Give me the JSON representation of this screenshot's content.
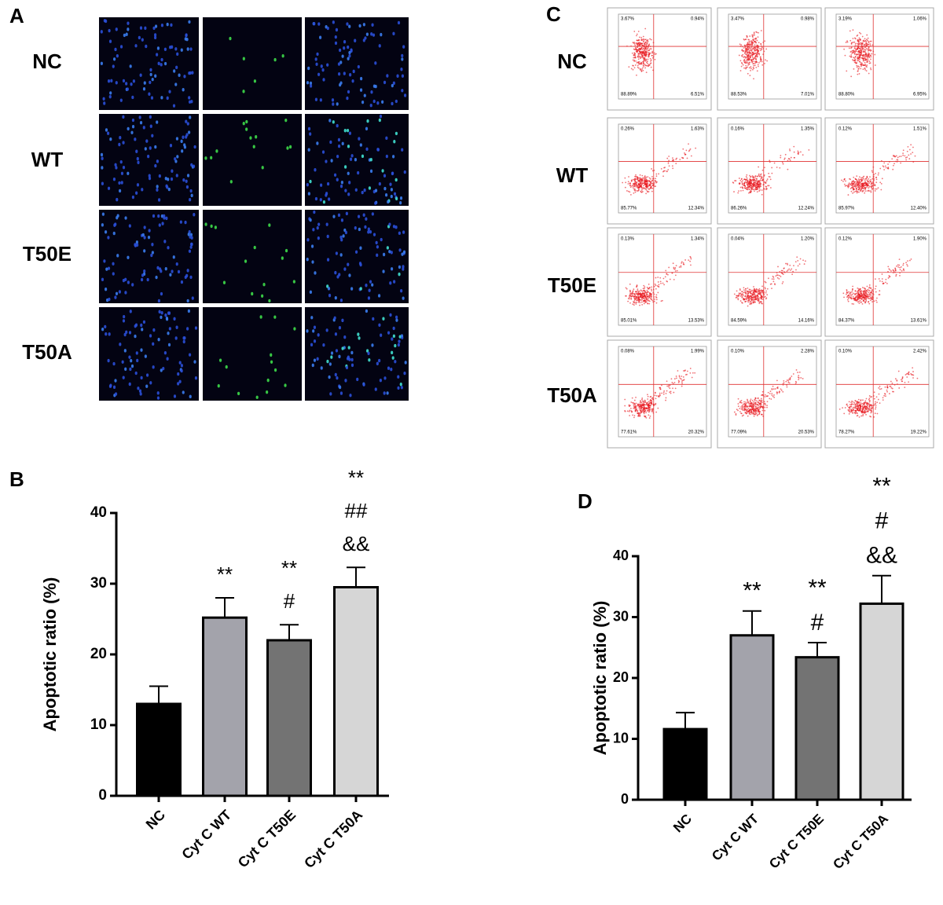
{
  "figure": {
    "panels": [
      {
        "label": "A",
        "rows": [
          "NC",
          "WT",
          "T50E",
          "T50A"
        ]
      },
      {
        "label": "C",
        "rows": [
          "NC",
          "WT",
          "T50E",
          "T50A"
        ],
        "quadrants": [
          [
            [
              "3.67%",
              "0.94%",
              "88.89%",
              "6.51%"
            ],
            [
              "3.47%",
              "0.98%",
              "88.53%",
              "7.01%"
            ],
            [
              "3.19%",
              "1.06%",
              "88.80%",
              "6.95%"
            ]
          ],
          [
            [
              "0.26%",
              "1.63%",
              "85.77%",
              "12.34%"
            ],
            [
              "0.16%",
              "1.35%",
              "86.26%",
              "12.24%"
            ],
            [
              "0.12%",
              "1.51%",
              "85.97%",
              "12.40%"
            ]
          ],
          [
            [
              "0.13%",
              "1.34%",
              "85.01%",
              "13.53%"
            ],
            [
              "0.04%",
              "1.20%",
              "84.59%",
              "14.16%"
            ],
            [
              "0.12%",
              "1.90%",
              "84.37%",
              "13.61%"
            ]
          ],
          [
            [
              "0.08%",
              "1.99%",
              "77.61%",
              "20.32%"
            ],
            [
              "0.10%",
              "2.28%",
              "77.09%",
              "20.53%"
            ],
            [
              "0.10%",
              "2.42%",
              "78.27%",
              "19.22%"
            ]
          ]
        ]
      }
    ]
  },
  "chart_data": [
    {
      "type": "bar",
      "label": "B",
      "y_label": "Apoptotic ratio (%)",
      "categories": [
        "NC",
        "Cyt C WT",
        "Cyt C T50E",
        "Cyt C T50A"
      ],
      "values": [
        13,
        25.2,
        22,
        29.5
      ],
      "errors": [
        2.5,
        2.8,
        2.2,
        2.8
      ],
      "colors": [
        "#000000",
        "#a3a3ab",
        "#737373",
        "#d6d6d6"
      ],
      "annotations": [
        [],
        [
          "**"
        ],
        [
          "**",
          "#"
        ],
        [
          "**",
          "##",
          "&&"
        ]
      ],
      "ylim": [
        0,
        40
      ],
      "yticks": [
        0,
        10,
        20,
        30,
        40
      ]
    },
    {
      "type": "bar",
      "label": "D",
      "y_label": "Apoptotic ratio (%)",
      "categories": [
        "NC",
        "Cyt C WT",
        "Cyt C T50E",
        "Cyt C T50A"
      ],
      "values": [
        11.6,
        27,
        23.4,
        32.2
      ],
      "errors": [
        2.7,
        4,
        2.4,
        4.6
      ],
      "colors": [
        "#000000",
        "#a3a3ab",
        "#737373",
        "#d6d6d6"
      ],
      "annotations": [
        [],
        [
          "**"
        ],
        [
          "**",
          "#"
        ],
        [
          "**",
          "#",
          "&&"
        ]
      ],
      "ylim": [
        0,
        40
      ],
      "yticks": [
        0,
        10,
        20,
        30,
        40
      ]
    }
  ]
}
